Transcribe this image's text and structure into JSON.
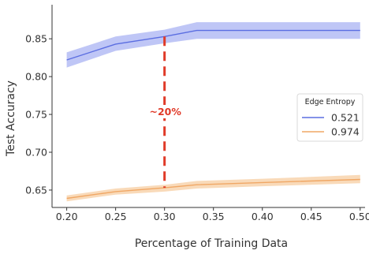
{
  "chart_data": {
    "type": "line",
    "title": "",
    "xlabel": "Percentage of Training Data",
    "ylabel": "Test Accuracy",
    "xlim": [
      0.185,
      0.505
    ],
    "ylim": [
      0.627,
      0.895
    ],
    "x_ticks": [
      0.2,
      0.25,
      0.3,
      0.35,
      0.4,
      0.45,
      0.5
    ],
    "x_tick_labels": [
      "0.20",
      "0.25",
      "0.30",
      "0.35",
      "0.40",
      "0.45",
      "0.50"
    ],
    "y_ticks": [
      0.65,
      0.7,
      0.75,
      0.8,
      0.85
    ],
    "y_tick_labels": [
      "0.65",
      "0.70",
      "0.75",
      "0.80",
      "0.85"
    ],
    "grid": false,
    "legend": {
      "title": "Edge Entropy",
      "placement": "center-right"
    },
    "series": [
      {
        "name": "0.521",
        "color": "#5b6ee1",
        "band_color": "#b4bcf5",
        "x": [
          0.2,
          0.25,
          0.3,
          0.333,
          0.4,
          0.5
        ],
        "y": [
          0.822,
          0.843,
          0.853,
          0.861,
          0.861,
          0.861
        ],
        "lower": [
          0.812,
          0.834,
          0.844,
          0.85,
          0.85,
          0.85
        ],
        "upper": [
          0.832,
          0.853,
          0.862,
          0.872,
          0.872,
          0.872
        ]
      },
      {
        "name": "0.974",
        "color": "#f0a765",
        "band_color": "#f8d3ad",
        "x": [
          0.2,
          0.25,
          0.3,
          0.333,
          0.4,
          0.5
        ],
        "y": [
          0.639,
          0.648,
          0.653,
          0.657,
          0.66,
          0.664
        ],
        "lower": [
          0.635,
          0.644,
          0.648,
          0.652,
          0.655,
          0.659
        ],
        "upper": [
          0.643,
          0.652,
          0.657,
          0.662,
          0.665,
          0.67
        ]
      }
    ],
    "annotation": {
      "text": "~20%",
      "color": "#e03a28",
      "x": 0.3,
      "y_from": 0.653,
      "y_to": 0.853
    }
  }
}
